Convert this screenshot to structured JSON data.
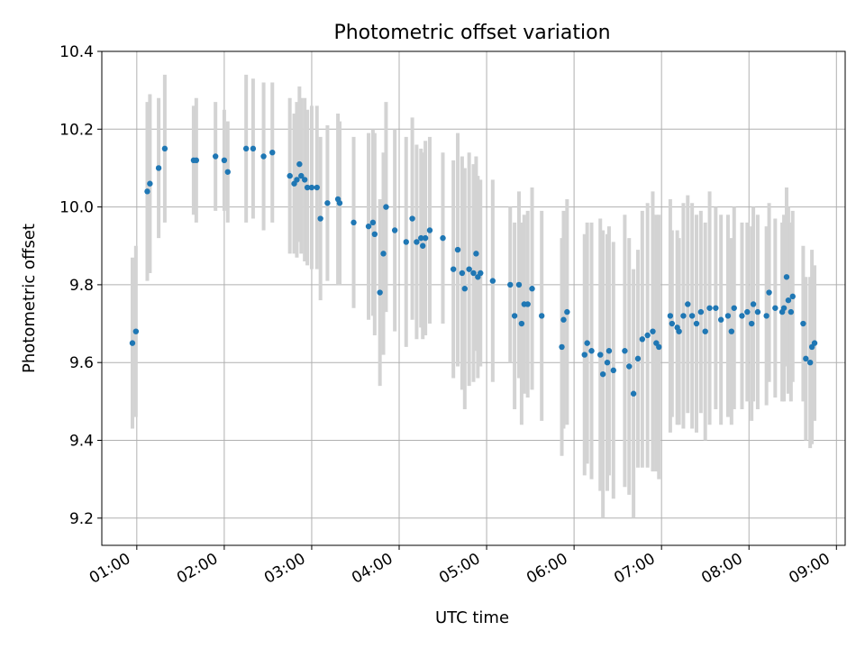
{
  "chart_data": {
    "type": "scatter",
    "title": "Photometric offset variation",
    "xlabel": "UTC time",
    "ylabel": "Photometric offset",
    "x_unit": "hours UTC",
    "xlim": [
      0.6,
      9.1
    ],
    "ylim": [
      9.13,
      10.4
    ],
    "x_ticks": [
      1,
      2,
      3,
      4,
      5,
      6,
      7,
      8,
      9
    ],
    "x_tick_labels": [
      "01:00",
      "02:00",
      "03:00",
      "04:00",
      "05:00",
      "06:00",
      "07:00",
      "08:00",
      "09:00"
    ],
    "y_ticks": [
      9.2,
      9.4,
      9.6,
      9.8,
      10.0,
      10.2,
      10.4
    ],
    "y_tick_labels": [
      "9.2",
      "9.4",
      "9.6",
      "9.8",
      "10.0",
      "10.2",
      "10.4"
    ],
    "grid": true,
    "marker_color": "#1f77b4",
    "errorbar_color": "#d3d3d3",
    "series": [
      {
        "x": [
          0.95,
          0.99,
          1.12,
          1.15,
          1.25,
          1.32,
          1.65,
          1.68,
          1.9,
          2.0,
          2.04,
          2.25,
          2.33,
          2.45,
          2.55,
          2.75,
          2.8,
          2.83,
          2.86,
          2.88,
          2.92,
          2.95,
          3.0,
          3.06,
          3.1,
          3.18,
          3.3,
          3.32,
          3.48,
          3.65,
          3.7,
          3.72,
          3.78,
          3.82,
          3.85,
          3.95,
          4.08,
          4.15,
          4.2,
          4.25,
          4.27,
          4.3,
          4.35,
          4.5,
          4.62,
          4.67,
          4.72,
          4.75,
          4.8,
          4.85,
          4.88,
          4.9,
          4.93,
          5.07,
          5.27,
          5.32,
          5.37,
          5.4,
          5.43,
          5.47,
          5.52,
          5.63,
          5.86,
          5.88,
          5.92,
          6.12,
          6.15,
          6.2,
          6.3,
          6.33,
          6.38,
          6.4,
          6.45,
          6.58,
          6.63,
          6.68,
          6.73,
          6.78,
          6.84,
          6.9,
          6.94,
          6.97,
          7.1,
          7.12,
          7.18,
          7.2,
          7.25,
          7.3,
          7.35,
          7.4,
          7.45,
          7.5,
          7.55,
          7.62,
          7.68,
          7.76,
          7.8,
          7.83,
          7.92,
          7.98,
          8.03,
          8.05,
          8.1,
          8.2,
          8.23,
          8.3,
          8.38,
          8.4,
          8.43,
          8.45,
          8.48,
          8.5,
          8.62,
          8.65,
          8.7,
          8.72,
          8.75
        ],
        "y": [
          9.65,
          9.68,
          10.04,
          10.06,
          10.1,
          10.15,
          10.12,
          10.12,
          10.13,
          10.12,
          10.09,
          10.15,
          10.15,
          10.13,
          10.14,
          10.08,
          10.06,
          10.07,
          10.11,
          10.08,
          10.07,
          10.05,
          10.05,
          10.05,
          9.97,
          10.01,
          10.02,
          10.01,
          9.96,
          9.95,
          9.96,
          9.93,
          9.78,
          9.88,
          10.0,
          9.94,
          9.91,
          9.97,
          9.91,
          9.92,
          9.9,
          9.92,
          9.94,
          9.92,
          9.84,
          9.89,
          9.83,
          9.79,
          9.84,
          9.83,
          9.88,
          9.82,
          9.83,
          9.81,
          9.8,
          9.72,
          9.8,
          9.7,
          9.75,
          9.75,
          9.79,
          9.72,
          9.64,
          9.71,
          9.73,
          9.62,
          9.65,
          9.63,
          9.62,
          9.57,
          9.6,
          9.63,
          9.58,
          9.63,
          9.59,
          9.52,
          9.61,
          9.66,
          9.67,
          9.68,
          9.65,
          9.64,
          9.72,
          9.7,
          9.69,
          9.68,
          9.72,
          9.75,
          9.72,
          9.7,
          9.73,
          9.68,
          9.74,
          9.74,
          9.71,
          9.72,
          9.68,
          9.74,
          9.72,
          9.73,
          9.7,
          9.75,
          9.73,
          9.72,
          9.78,
          9.74,
          9.73,
          9.74,
          9.82,
          9.76,
          9.73,
          9.77,
          9.7,
          9.61,
          9.6,
          9.64,
          9.65
        ],
        "yerr": [
          0.22,
          0.22,
          0.23,
          0.23,
          0.18,
          0.19,
          0.14,
          0.16,
          0.14,
          0.13,
          0.13,
          0.19,
          0.18,
          0.19,
          0.18,
          0.2,
          0.18,
          0.2,
          0.2,
          0.2,
          0.21,
          0.2,
          0.21,
          0.21,
          0.21,
          0.2,
          0.22,
          0.21,
          0.22,
          0.24,
          0.24,
          0.26,
          0.24,
          0.26,
          0.27,
          0.26,
          0.27,
          0.26,
          0.25,
          0.23,
          0.24,
          0.25,
          0.24,
          0.22,
          0.28,
          0.3,
          0.3,
          0.31,
          0.3,
          0.28,
          0.25,
          0.26,
          0.24,
          0.26,
          0.2,
          0.24,
          0.24,
          0.26,
          0.23,
          0.24,
          0.26,
          0.27,
          0.28,
          0.28,
          0.29,
          0.31,
          0.31,
          0.33,
          0.35,
          0.37,
          0.33,
          0.32,
          0.33,
          0.35,
          0.33,
          0.32,
          0.28,
          0.33,
          0.34,
          0.36,
          0.33,
          0.34,
          0.3,
          0.24,
          0.25,
          0.24,
          0.29,
          0.28,
          0.29,
          0.28,
          0.26,
          0.28,
          0.3,
          0.26,
          0.27,
          0.26,
          0.24,
          0.26,
          0.24,
          0.23,
          0.25,
          0.25,
          0.25,
          0.23,
          0.23,
          0.23,
          0.23,
          0.24,
          0.23,
          0.24,
          0.23,
          0.22,
          0.2,
          0.21,
          0.22,
          0.25,
          0.2
        ]
      }
    ]
  }
}
